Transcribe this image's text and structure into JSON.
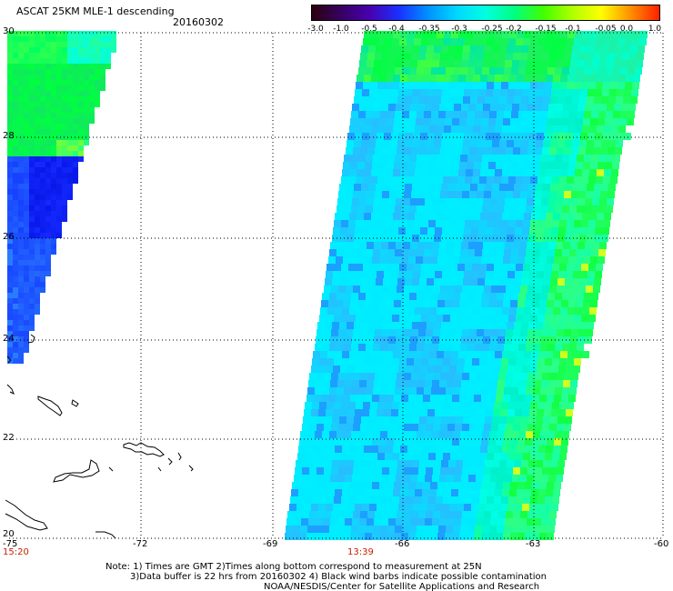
{
  "header": {
    "title": "ASCAT 25KM MLE-1 descending",
    "date": "20160302"
  },
  "colorbar": {
    "tick_labels": [
      "-3.0",
      "-1.0",
      "-0.5",
      "-0.4",
      "-0.35",
      "-0.3",
      "-0.25",
      "-0.2",
      "-0.15",
      "-0.1",
      "-0.05",
      "0.0",
      "1.0"
    ],
    "colors": [
      "#2a0010",
      "#380060",
      "#4800b0",
      "#1a30ff",
      "#0090ff",
      "#00d8ff",
      "#00ffe0",
      "#00ff80",
      "#40ff00",
      "#b0ff00",
      "#ffff00",
      "#ff9000",
      "#ff2000"
    ]
  },
  "axes": {
    "lat_labels": [
      "30",
      "28",
      "26",
      "24",
      "22",
      "20"
    ],
    "lon_labels": [
      "-75",
      "-72",
      "-69",
      "-66",
      "-63",
      "-60"
    ]
  },
  "pass_times": [
    "15:20",
    "13:39"
  ],
  "notes": {
    "line1": "Note: 1) Times are GMT 2)Times along bottom correspond to measurement at 25N",
    "line2": "3)Data buffer is 22 hrs from 20160302 4) Black wind barbs indicate possible contamination",
    "line3": "NOAA/NESDIS/Center for Satellite Applications and Research"
  }
}
